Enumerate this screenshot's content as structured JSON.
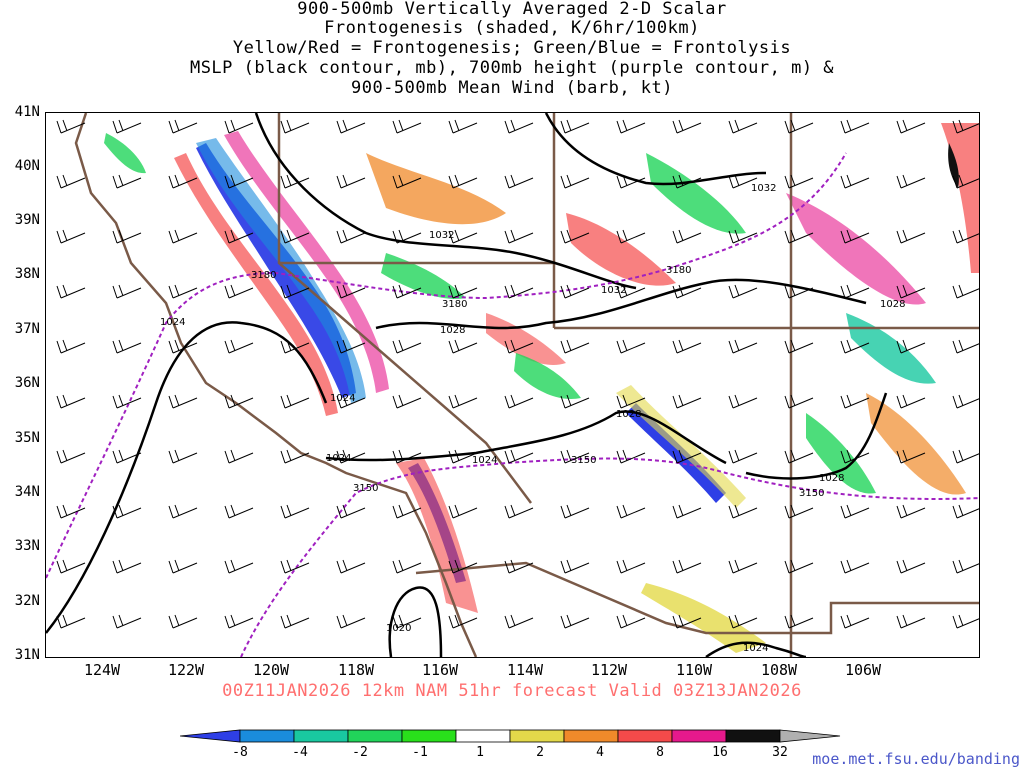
{
  "title": {
    "line1": "900-500mb Vertically Averaged 2-D Scalar",
    "line2": "Frontogenesis (shaded, K/6hr/100km)",
    "line3": "Yellow/Red = Frontogenesis;  Green/Blue = Frontolysis",
    "line4": "MSLP (black contour, mb), 700mb height (purple contour, m) &",
    "line5": "900-500mb Mean Wind (barb, kt)"
  },
  "axes": {
    "lat_labels": [
      "41N",
      "40N",
      "39N",
      "38N",
      "37N",
      "36N",
      "35N",
      "34N",
      "33N",
      "32N",
      "31N"
    ],
    "lon_labels": [
      "124W",
      "122W",
      "120W",
      "118W",
      "116W",
      "114W",
      "112W",
      "110W",
      "108W",
      "106W"
    ]
  },
  "contour_labels": {
    "mslp": [
      "1032",
      "1032",
      "1032",
      "1028",
      "1028",
      "1024",
      "1024",
      "1024",
      "1028",
      "1024",
      "1024",
      "1020",
      "1028"
    ],
    "height": [
      "3180",
      "3180",
      "3180",
      "3150",
      "3150",
      "3150"
    ]
  },
  "valid_line": "00Z11JAN2026 12km NAM 51hr forecast Valid 03Z13JAN2026",
  "colorbar": {
    "labels": [
      "-8",
      "-4",
      "-2",
      "-1",
      "1",
      "2",
      "4",
      "8",
      "16",
      "32"
    ],
    "colors": [
      "#2e3fe6",
      "#1a8cdc",
      "#19c8a0",
      "#21d45a",
      "#29e01b",
      "#ffffff",
      "#e3d94a",
      "#f08a2a",
      "#f54a4a",
      "#e6198c",
      "#111111",
      "#b0b0b0"
    ]
  },
  "credit": "moe.met.fsu.edu/banding",
  "colors": {
    "border": "#7a5a48",
    "mslp_contour": "#000000",
    "height_contour": "#a020c0",
    "valid_text": "#ff6f6f",
    "credit_text": "#4b57c9"
  }
}
